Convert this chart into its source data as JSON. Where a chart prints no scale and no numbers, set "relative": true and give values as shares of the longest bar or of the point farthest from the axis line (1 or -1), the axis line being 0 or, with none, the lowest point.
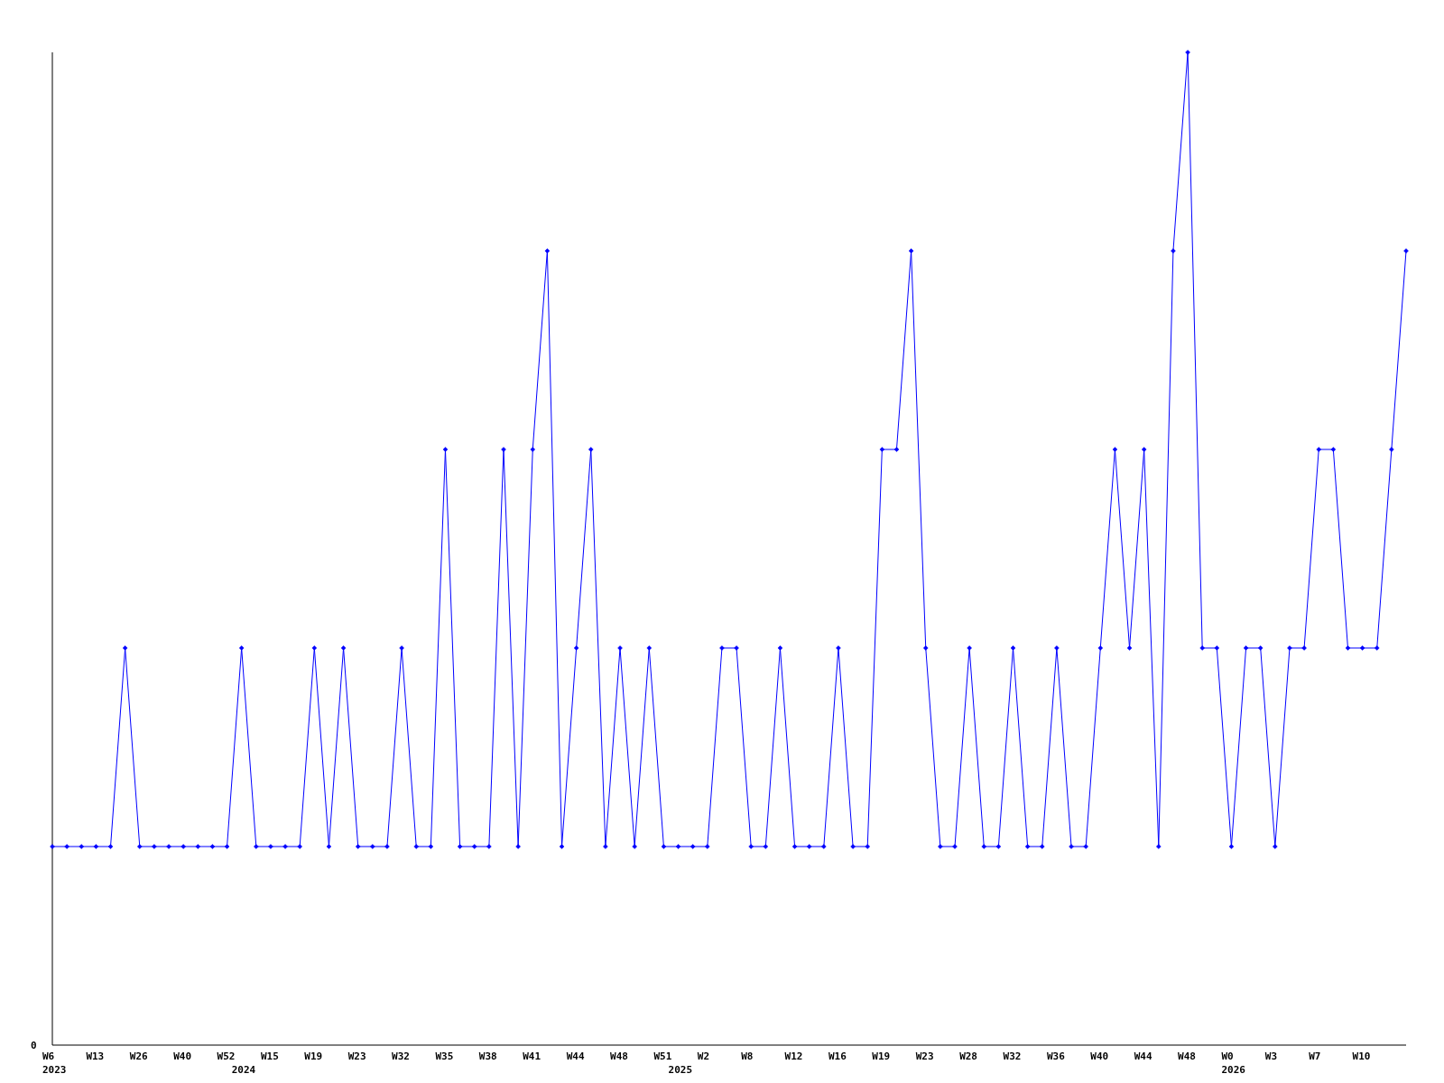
{
  "chart_data": {
    "type": "line",
    "relative": true,
    "color": "#0000ff",
    "marker": "diamond",
    "line_style": "solid",
    "annotations": [
      "0"
    ],
    "categories": [
      "W6\n2023",
      null,
      null,
      "W13",
      null,
      null,
      "W26",
      null,
      null,
      "W40",
      null,
      null,
      "W52",
      "\n2024",
      null,
      "W15",
      null,
      null,
      "W19",
      null,
      null,
      "W23",
      null,
      null,
      "W32",
      null,
      null,
      "W35",
      null,
      null,
      "W38",
      null,
      null,
      "W41",
      null,
      null,
      "W44",
      null,
      null,
      "W48",
      null,
      null,
      "W51",
      "\n2025",
      null,
      "W2",
      null,
      null,
      "W8",
      null,
      null,
      "W12",
      null,
      null,
      "W16",
      null,
      null,
      "W19",
      null,
      null,
      "W23",
      null,
      null,
      "W28",
      null,
      null,
      "W32",
      null,
      null,
      "W36",
      null,
      null,
      "W40",
      null,
      null,
      "W44",
      null,
      null,
      "W48",
      null,
      null,
      "W0\n2026",
      null,
      null,
      "W3",
      null,
      null,
      "W7",
      null,
      null,
      "W10",
      null,
      null,
      null
    ],
    "values": [
      0.2,
      0.2,
      0.2,
      0.2,
      0.2,
      0.4,
      0.2,
      0.2,
      0.2,
      0.2,
      0.2,
      0.2,
      0.2,
      0.4,
      0.2,
      0.2,
      0.2,
      0.2,
      0.4,
      0.2,
      0.4,
      0.2,
      0.2,
      0.2,
      0.4,
      0.2,
      0.2,
      0.6,
      0.2,
      0.2,
      0.2,
      0.6,
      0.2,
      0.6,
      0.8,
      0.2,
      0.4,
      0.6,
      0.2,
      0.4,
      0.2,
      0.4,
      0.2,
      0.2,
      0.2,
      0.2,
      0.4,
      0.4,
      0.2,
      0.2,
      0.4,
      0.2,
      0.2,
      0.2,
      0.4,
      0.2,
      0.2,
      0.6,
      0.6,
      0.8,
      0.4,
      0.2,
      0.2,
      0.4,
      0.2,
      0.2,
      0.4,
      0.2,
      0.2,
      0.4,
      0.2,
      0.2,
      0.4,
      0.6,
      0.4,
      0.6,
      0.2,
      0.8,
      1.0,
      0.4,
      0.4,
      0.2,
      0.4,
      0.4,
      0.2,
      0.4,
      0.4,
      0.6,
      0.6,
      0.4,
      0.4,
      0.4,
      0.6,
      0.8
    ]
  }
}
